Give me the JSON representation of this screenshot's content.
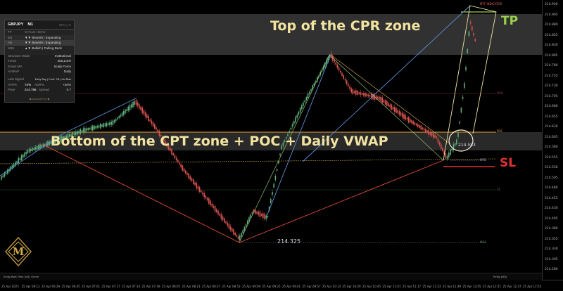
{
  "panel": {
    "symbol": "GBPJPY",
    "timeframe": "M1",
    "header_controls": "STS  ▢  ✕",
    "mtf_rows": [
      {
        "tf": "TF",
        "state": "CYCLE / BIAS"
      },
      {
        "tf": "M1",
        "state": "▼▼ Bearish | Expanding"
      },
      {
        "tf": "M5",
        "state": "▼▼ Bearish | Expanding"
      },
      {
        "tf": "M15",
        "state": "▲▼ Bullish | Pulling Back"
      }
    ],
    "info_rows": [
      {
        "k": "Structure Mode",
        "v": "Institutional"
      },
      {
        "k": "Trend",
        "v": "BULLISH"
      },
      {
        "k": "Smart MA",
        "v": "Scalp Force"
      },
      {
        "k": "AVWAP",
        "v": "Daily"
      }
    ],
    "signal_label": "Last Signal",
    "signal_value": "Early Buy | Conf: 7/8 | Lib Risk",
    "atr_label": "ATR%",
    "atr_value": "74%",
    "adr_label": "ADR%",
    "adr_value": "+40%",
    "price_label": "Price",
    "price_value": "214.786",
    "spread_label": "Spread",
    "spread_value": "0.7",
    "footer": "◆ Apexalt Pro ◆"
  },
  "annotations": {
    "top": "Top of the CPR zone",
    "bottom": "Bottom of the CPT zone + POC + Daily VWAP",
    "tp": "TP",
    "sl": "SL"
  },
  "levels": {
    "low_price": "214.325",
    "entry_price": "214.583",
    "mtf_tag": "MTF INDICATOR",
    "poc_tag": "POC",
    "pdh_tag": "PDH",
    "mts_tag": "MTS",
    "msa_tag": "MSA",
    "s1_tag": "S1"
  },
  "y_axis": [
    "214.930",
    "214.905",
    "214.880",
    "214.855",
    "214.830",
    "214.805",
    "214.780",
    "214.755",
    "214.730",
    "214.705",
    "214.680",
    "214.655",
    "214.630",
    "214.605",
    "214.580",
    "214.555",
    "214.530",
    "214.505",
    "214.480",
    "214.455",
    "214.430",
    "214.405",
    "214.380",
    "214.355",
    "214.330",
    "214.305",
    "214.280"
  ],
  "x_axis": [
    "25 Apr 2025",
    "25 Apr 06:13",
    "25 Apr 06:29",
    "25 Apr 06:45",
    "25 Apr 07:01",
    "25 Apr 07:17",
    "25 Apr 07:33",
    "25 Apr 07:49",
    "25 Apr 08:05",
    "25 Apr 08:21",
    "25 Apr 08:37",
    "25 Apr 08:53",
    "25 Apr 09:09",
    "25 Apr 09:25",
    "25 Apr 09:41",
    "25 Apr 09:57",
    "25 Apr 10:13",
    "25 Apr 10:29",
    "25 Apr 10:45",
    "25 Apr 11:01",
    "25 Apr 11:17",
    "25 Apr 11:33",
    "25 Apr 11:49",
    "25 Apr 12:05",
    "25 Apr 12:21",
    "25 Apr 12:37",
    "25 Apr 12:53"
  ],
  "status": {
    "left": "Trinity Bias Filter (M1) Green",
    "right": "Trinity (M5)"
  },
  "colors": {
    "bull": "#5fae7e",
    "bear": "#d9534f",
    "blue_line": "#5b8fd6",
    "red_line": "#e0503a",
    "green_line": "#9fd27a",
    "zone_line": "#e0a030",
    "tp_color": "#9ad14b",
    "sl_color": "#e03030",
    "annotation": "#f2e3a0"
  },
  "logo_text": "M"
}
